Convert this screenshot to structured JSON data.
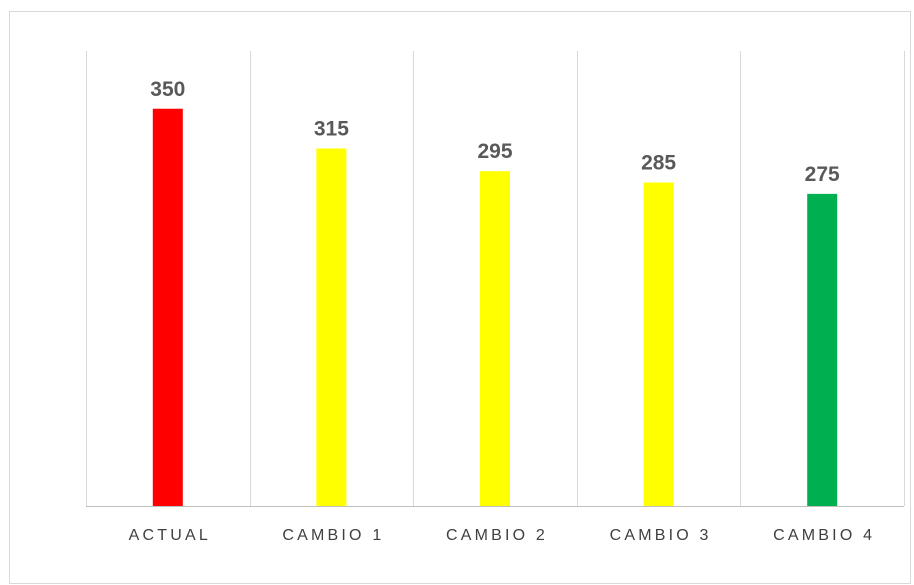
{
  "chart_data": {
    "type": "bar",
    "title": "",
    "xlabel": "",
    "ylabel": "",
    "categories": [
      "ACTUAL",
      "CAMBIO 1",
      "CAMBIO 2",
      "CAMBIO 3",
      "CAMBIO 4"
    ],
    "values": [
      350,
      315,
      295,
      285,
      275
    ],
    "bar_colors": [
      "#ff0000",
      "#ffff00",
      "#ffff00",
      "#ffff00",
      "#00b050"
    ],
    "ylim": [
      0,
      400
    ],
    "grid": "vertical separators between categories",
    "legend": "none",
    "data_labels": true
  }
}
